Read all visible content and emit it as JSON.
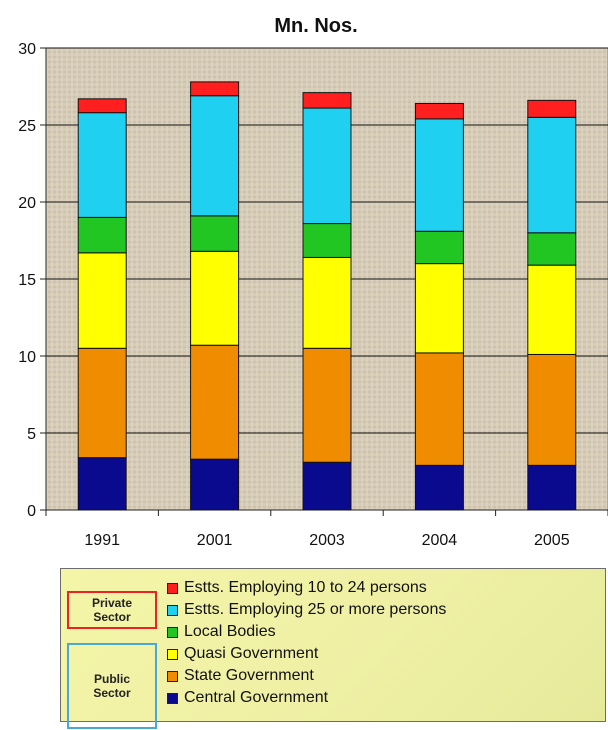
{
  "chart_data": {
    "type": "bar",
    "stacked": true,
    "title": "Mn. Nos.",
    "xlabel": "",
    "ylabel": "",
    "categories": [
      "1991",
      "2001",
      "2003",
      "2004",
      "2005"
    ],
    "ylim": [
      0,
      30
    ],
    "yticks": [
      0,
      5,
      10,
      15,
      20,
      25,
      30
    ],
    "grid": true,
    "legend_position": "bottom",
    "series": [
      {
        "name": "Central Government",
        "color": "#0a0a8e",
        "values": [
          3.4,
          3.3,
          3.1,
          2.9,
          2.9
        ]
      },
      {
        "name": "State Government",
        "color": "#f08c00",
        "values": [
          7.1,
          7.4,
          7.4,
          7.3,
          7.2
        ]
      },
      {
        "name": "Quasi Government",
        "color": "#ffff00",
        "values": [
          6.2,
          6.1,
          5.9,
          5.8,
          5.8
        ]
      },
      {
        "name": "Local Bodies",
        "color": "#22c622",
        "values": [
          2.3,
          2.3,
          2.2,
          2.1,
          2.1
        ]
      },
      {
        "name": "Estts. Employing 25 or more persons",
        "color": "#20d0f0",
        "values": [
          6.8,
          7.8,
          7.5,
          7.3,
          7.5
        ]
      },
      {
        "name": "Estts. Employing 10 to 24 persons",
        "color": "#ff1f1f",
        "values": [
          0.9,
          0.9,
          1.0,
          1.0,
          1.1
        ]
      }
    ]
  },
  "legend": {
    "items": [
      {
        "label": "Estts. Employing 10 to 24 persons",
        "color": "#ff1f1f"
      },
      {
        "label": "Estts. Employing 25 or more persons",
        "color": "#20d0f0"
      },
      {
        "label": "Local Bodies",
        "color": "#22c622"
      },
      {
        "label": "Quasi Government",
        "color": "#ffff00"
      },
      {
        "label": "State Government",
        "color": "#f08c00"
      },
      {
        "label": "Central Government",
        "color": "#0a0a8e"
      }
    ],
    "groups": {
      "private": "Private\nSector",
      "public": "Public\nSector"
    }
  }
}
